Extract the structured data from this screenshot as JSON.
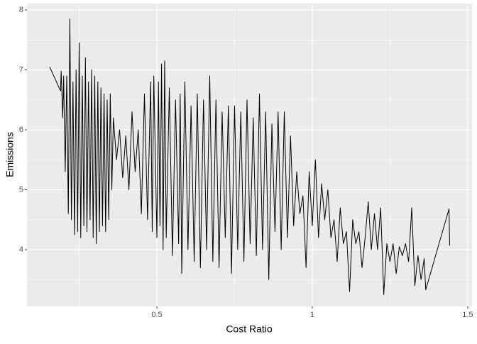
{
  "chart_data": {
    "type": "line",
    "x_label": "Cost Ratio",
    "y_label": "Emissions",
    "x": [
      0.155,
      0.19,
      0.192,
      0.197,
      0.2,
      0.205,
      0.21,
      0.215,
      0.22,
      0.225,
      0.23,
      0.235,
      0.24,
      0.245,
      0.25,
      0.255,
      0.26,
      0.265,
      0.27,
      0.275,
      0.28,
      0.285,
      0.29,
      0.295,
      0.3,
      0.305,
      0.31,
      0.315,
      0.32,
      0.325,
      0.33,
      0.335,
      0.34,
      0.345,
      0.35,
      0.355,
      0.36,
      0.37,
      0.38,
      0.39,
      0.4,
      0.41,
      0.42,
      0.43,
      0.44,
      0.45,
      0.46,
      0.47,
      0.48,
      0.485,
      0.49,
      0.5,
      0.505,
      0.51,
      0.515,
      0.52,
      0.525,
      0.53,
      0.54,
      0.55,
      0.56,
      0.57,
      0.575,
      0.58,
      0.59,
      0.6,
      0.61,
      0.62,
      0.63,
      0.64,
      0.65,
      0.66,
      0.67,
      0.68,
      0.69,
      0.7,
      0.71,
      0.72,
      0.73,
      0.74,
      0.75,
      0.76,
      0.77,
      0.78,
      0.79,
      0.8,
      0.81,
      0.82,
      0.83,
      0.84,
      0.85,
      0.86,
      0.87,
      0.88,
      0.89,
      0.9,
      0.91,
      0.92,
      0.93,
      0.94,
      0.95,
      0.96,
      0.97,
      0.98,
      0.99,
      1.0,
      1.01,
      1.02,
      1.03,
      1.04,
      1.05,
      1.06,
      1.07,
      1.08,
      1.09,
      1.1,
      1.11,
      1.12,
      1.13,
      1.14,
      1.15,
      1.16,
      1.17,
      1.18,
      1.19,
      1.2,
      1.21,
      1.22,
      1.23,
      1.24,
      1.25,
      1.26,
      1.27,
      1.28,
      1.29,
      1.3,
      1.31,
      1.32,
      1.33,
      1.34,
      1.35,
      1.36,
      1.365,
      1.44,
      1.442
    ],
    "values": [
      7.05,
      6.65,
      6.98,
      6.2,
      6.9,
      5.3,
      6.9,
      4.6,
      7.85,
      4.5,
      6.8,
      4.25,
      7.0,
      4.3,
      7.45,
      4.2,
      6.9,
      4.4,
      7.2,
      4.3,
      6.8,
      4.5,
      7.0,
      4.2,
      6.9,
      4.1,
      6.8,
      4.3,
      6.7,
      4.4,
      6.6,
      4.3,
      6.5,
      4.5,
      6.6,
      5.0,
      6.2,
      5.5,
      6.0,
      5.2,
      5.9,
      5.0,
      6.3,
      5.3,
      6.0,
      4.6,
      6.6,
      4.5,
      6.8,
      4.3,
      6.9,
      4.2,
      6.8,
      4.4,
      7.1,
      4.0,
      7.15,
      4.2,
      6.7,
      3.9,
      6.5,
      4.1,
      6.6,
      3.6,
      6.8,
      4.0,
      6.4,
      3.8,
      6.6,
      3.7,
      6.5,
      4.0,
      6.9,
      3.8,
      6.5,
      3.7,
      6.3,
      4.2,
      6.4,
      3.6,
      6.4,
      4.0,
      6.3,
      3.8,
      6.5,
      4.1,
      6.2,
      3.9,
      6.6,
      4.0,
      6.3,
      3.5,
      6.1,
      4.3,
      6.3,
      4.0,
      6.3,
      4.2,
      5.9,
      4.4,
      5.3,
      4.6,
      4.9,
      3.7,
      5.3,
      4.4,
      5.5,
      4.2,
      5.1,
      4.5,
      5.0,
      4.2,
      4.5,
      3.8,
      4.7,
      4.1,
      4.3,
      3.3,
      4.5,
      4.1,
      4.3,
      3.7,
      4.2,
      4.8,
      4.0,
      4.6,
      4.0,
      4.7,
      3.25,
      4.1,
      3.8,
      4.1,
      3.6,
      4.05,
      3.9,
      4.1,
      3.8,
      4.7,
      3.4,
      3.9,
      3.5,
      3.85,
      3.33,
      4.68,
      4.07
    ],
    "color": "#000000",
    "xlim": [
      0.082,
      1.514
    ],
    "xticks": [
      0.5,
      1.0,
      1.5
    ],
    "ylim": [
      3.053,
      8.107
    ],
    "yticks": [
      4,
      5,
      6,
      7,
      8
    ],
    "grid": true
  }
}
